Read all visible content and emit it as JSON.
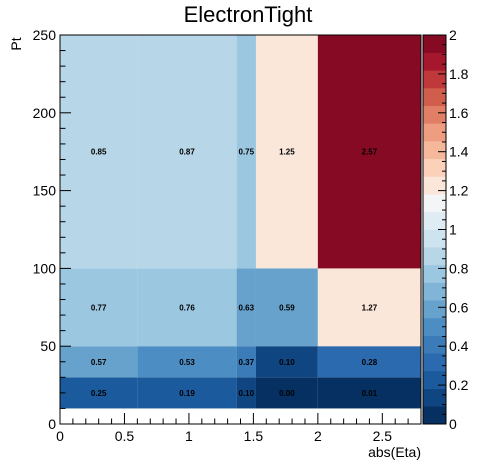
{
  "chart_data": {
    "type": "heatmap",
    "title": "ElectronTight",
    "xlabel": "abs(Eta)",
    "ylabel": "Pt",
    "xlim": [
      0,
      2.8
    ],
    "ylim": [
      0,
      250
    ],
    "x_edges": [
      0,
      0.6,
      1.37,
      1.52,
      2.0,
      2.8
    ],
    "y_edges": [
      10,
      30,
      50,
      100,
      250
    ],
    "x_ticks": [
      "0",
      "0.5",
      "1",
      "1.5",
      "2",
      "2.5"
    ],
    "y_ticks": [
      "0",
      "50",
      "100",
      "150",
      "200",
      "250"
    ],
    "z_ticks": [
      "0",
      "0.2",
      "0.4",
      "0.6",
      "0.8",
      "1",
      "1.2",
      "1.4",
      "1.6",
      "1.8",
      "2"
    ],
    "zlim": [
      0,
      2
    ],
    "cells": [
      {
        "xbin": 0,
        "ybin": 0,
        "value": 0.25,
        "label": "0.25"
      },
      {
        "xbin": 1,
        "ybin": 0,
        "value": 0.19,
        "label": "0.19"
      },
      {
        "xbin": 2,
        "ybin": 0,
        "value": 0.1,
        "label": "0.10"
      },
      {
        "xbin": 3,
        "ybin": 0,
        "value": 0.0,
        "label": "0.00"
      },
      {
        "xbin": 4,
        "ybin": 0,
        "value": 0.01,
        "label": "0.01"
      },
      {
        "xbin": 0,
        "ybin": 1,
        "value": 0.57,
        "label": "0.57"
      },
      {
        "xbin": 1,
        "ybin": 1,
        "value": 0.53,
        "label": "0.53"
      },
      {
        "xbin": 2,
        "ybin": 1,
        "value": 0.37,
        "label": "0.37"
      },
      {
        "xbin": 3,
        "ybin": 1,
        "value": 0.1,
        "label": "0.10"
      },
      {
        "xbin": 4,
        "ybin": 1,
        "value": 0.28,
        "label": "0.28"
      },
      {
        "xbin": 0,
        "ybin": 2,
        "value": 0.77,
        "label": "0.77"
      },
      {
        "xbin": 1,
        "ybin": 2,
        "value": 0.76,
        "label": "0.76"
      },
      {
        "xbin": 2,
        "ybin": 2,
        "value": 0.63,
        "label": "0.63"
      },
      {
        "xbin": 3,
        "ybin": 2,
        "value": 0.59,
        "label": "0.59"
      },
      {
        "xbin": 4,
        "ybin": 2,
        "value": 1.27,
        "label": "1.27"
      },
      {
        "xbin": 0,
        "ybin": 3,
        "value": 0.85,
        "label": "0.85"
      },
      {
        "xbin": 1,
        "ybin": 3,
        "value": 0.87,
        "label": "0.87"
      },
      {
        "xbin": 2,
        "ybin": 3,
        "value": 0.75,
        "label": "0.75"
      },
      {
        "xbin": 3,
        "ybin": 3,
        "value": 1.25,
        "label": "1.25"
      },
      {
        "xbin": 4,
        "ybin": 3,
        "value": 2.57,
        "label": "2.57"
      }
    ],
    "palette": [
      "#053061",
      "#0f4581",
      "#1b5a9d",
      "#2b6aae",
      "#3a7bb8",
      "#4c8dc3",
      "#67a2cd",
      "#81b5d7",
      "#9cc7e0",
      "#b7d6e8",
      "#cde3ef",
      "#e0ecf3",
      "#f4f5f6",
      "#fbe6da",
      "#fbd1ba",
      "#f6b89b",
      "#ee9d80",
      "#e17e66",
      "#d15d4d",
      "#c0393a",
      "#a6172e",
      "#870a24"
    ],
    "grid": false,
    "legend": "colorbar-right"
  }
}
